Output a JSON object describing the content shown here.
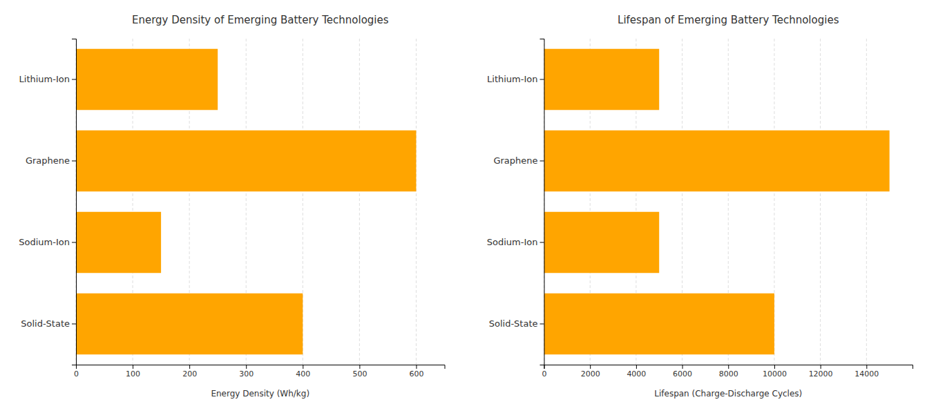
{
  "chart_data": [
    {
      "type": "bar",
      "orientation": "horizontal",
      "title": "Energy Density of Emerging Battery Technologies",
      "xlabel": "Energy Density (Wh/kg)",
      "categories": [
        "Lithium-Ion",
        "Graphene",
        "Sodium-Ion",
        "Solid-State"
      ],
      "values": [
        250,
        600,
        150,
        400
      ],
      "color": "#FFA500",
      "xlim": [
        0,
        650
      ],
      "xticks": [
        0,
        100,
        200,
        300,
        400,
        500,
        600
      ],
      "grid": true
    },
    {
      "type": "bar",
      "orientation": "horizontal",
      "title": "Lifespan of Emerging Battery Technologies",
      "xlabel": "Lifespan (Charge-Discharge Cycles)",
      "categories": [
        "Lithium-Ion",
        "Graphene",
        "Sodium-Ion",
        "Solid-State"
      ],
      "values": [
        5000,
        15000,
        5000,
        10000
      ],
      "color": "#FFA500",
      "xlim": [
        0,
        16000
      ],
      "xticks": [
        0,
        2000,
        4000,
        6000,
        8000,
        10000,
        12000,
        14000
      ],
      "grid": true
    }
  ]
}
